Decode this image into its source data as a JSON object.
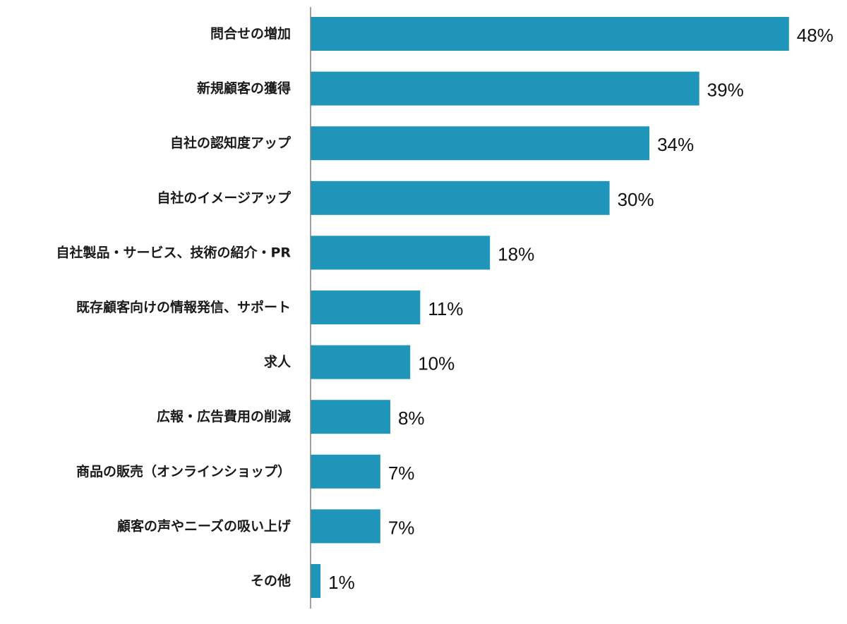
{
  "chart_data": {
    "type": "bar",
    "orientation": "horizontal",
    "categories": [
      "問合せの増加",
      "新規顧客の獲得",
      "自社の認知度アップ",
      "自社のイメージアップ",
      "自社製品・サービス、技術の紹介・PR",
      "既存顧客向けの情報発信、サポート",
      "求人",
      "広報・広告費用の削減",
      "商品の販売（オンラインショップ）",
      "顧客の声やニーズの吸い上げ",
      "その他"
    ],
    "values": [
      48,
      39,
      34,
      30,
      18,
      11,
      10,
      8,
      7,
      7,
      1
    ],
    "value_labels": [
      "48%",
      "39%",
      "34%",
      "30%",
      "18%",
      "11%",
      "10%",
      "8%",
      "7%",
      "7%",
      "1%"
    ],
    "unit": "%",
    "xlim": [
      0,
      50
    ],
    "bar_color": "#1f95ba",
    "axis_color": "#808080",
    "grid": false,
    "legend": "none"
  }
}
